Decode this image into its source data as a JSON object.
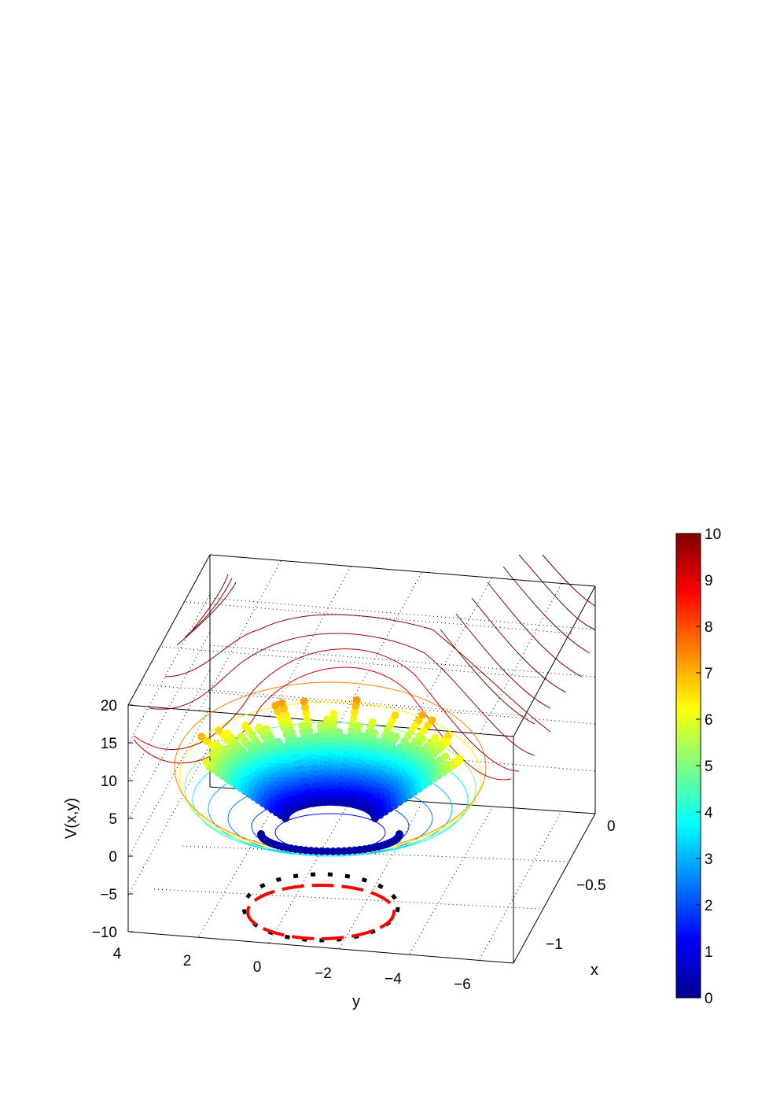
{
  "chart_data": {
    "type": "surface3d",
    "title": "",
    "xlabel": "x",
    "ylabel": "y",
    "zlabel": "V(x,y)",
    "x_ticks": [
      "0",
      "−0.5",
      "−1"
    ],
    "y_ticks": [
      "4",
      "2",
      "0",
      "−2",
      "−4",
      "−6"
    ],
    "z_ticks": [
      "20",
      "15",
      "10",
      "5",
      "0",
      "−5",
      "−10"
    ],
    "colorbar_ticks": [
      "10",
      "9",
      "8",
      "7",
      "6",
      "5",
      "4",
      "3",
      "2",
      "1",
      "0"
    ],
    "colormap": "jet",
    "zlim": [
      -10,
      20
    ],
    "clim": [
      0,
      10
    ],
    "grid": true,
    "contour_levels": [
      1,
      2,
      3,
      4,
      5,
      6,
      7,
      8,
      9,
      10,
      11,
      12,
      13,
      14,
      15
    ],
    "projected_ring_colors": {
      "inner": "#ff0000",
      "outer": "#000000"
    }
  }
}
